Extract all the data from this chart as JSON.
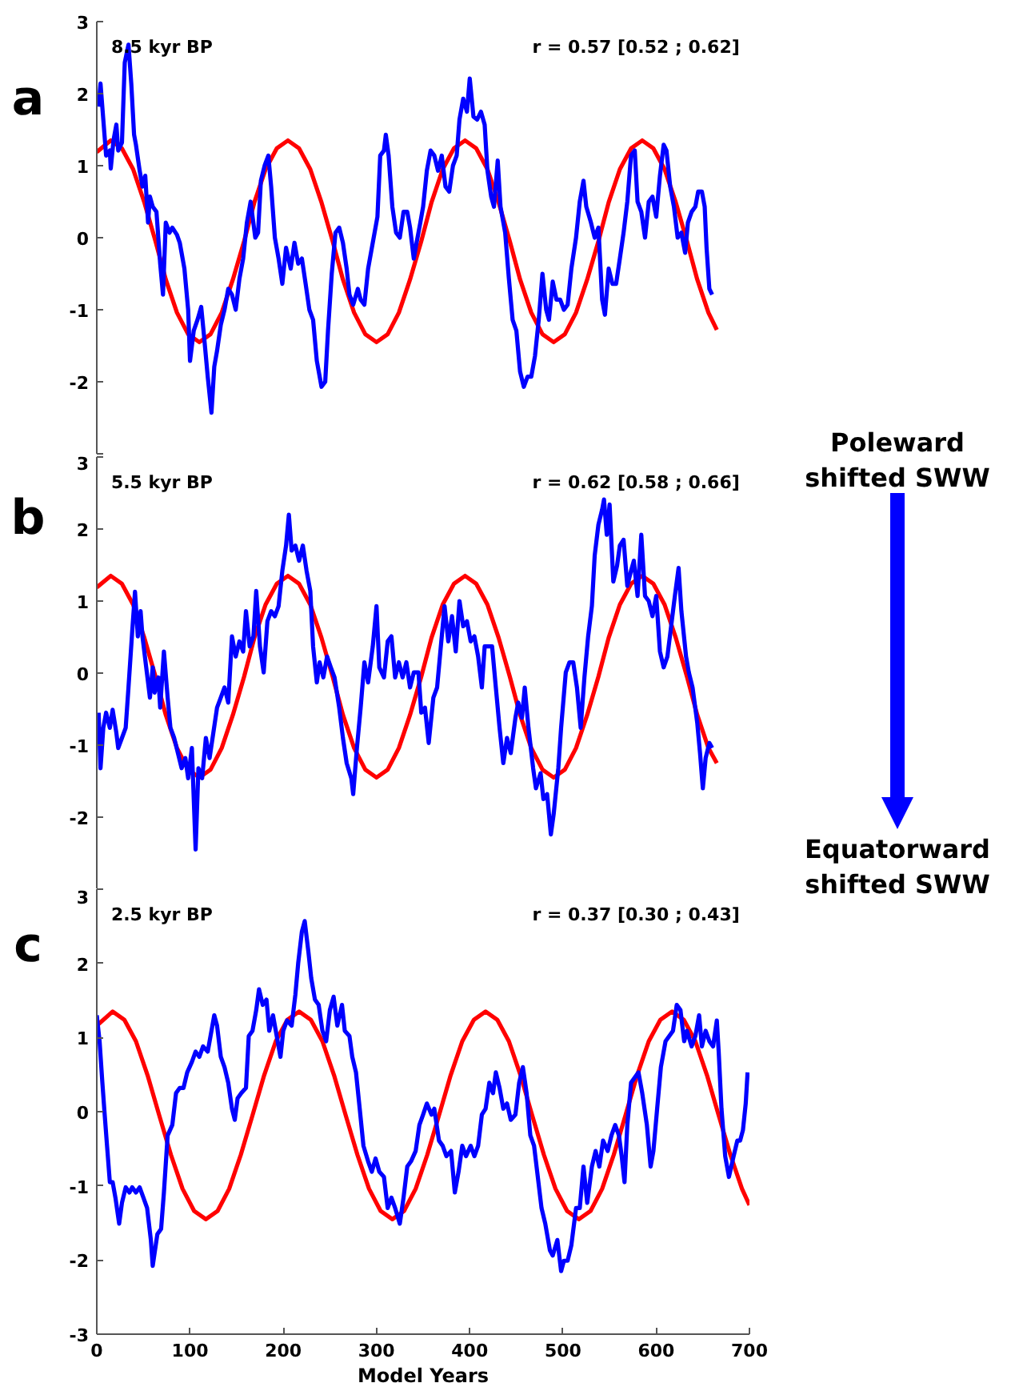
{
  "chart_data": [
    {
      "type": "line",
      "title": "a",
      "annotations": [
        "8.5 kyr BP",
        "r = 0.57 [0.52 ; 0.62]"
      ],
      "xlim": [
        0,
        700
      ],
      "ylim": [
        -3,
        3
      ],
      "yticks": [
        {
          "value": -3,
          "label": null
        },
        -2,
        -1,
        0,
        1,
        2,
        3
      ],
      "tick_labels": "y",
      "series": [
        {
          "color": "#ff0000",
          "x": [
            0,
            15,
            27,
            39,
            51,
            63,
            74,
            86,
            98,
            110,
            122,
            134,
            146,
            158,
            169,
            181,
            193,
            205,
            217,
            229,
            241,
            253,
            264,
            276,
            288,
            300,
            312,
            324,
            336,
            348,
            359,
            371,
            383,
            395,
            407,
            419,
            431,
            443,
            454,
            466,
            478,
            490,
            502,
            514,
            526,
            538,
            549,
            561,
            573,
            585,
            597,
            609,
            621,
            633,
            644,
            656,
            665
          ],
          "values": [
            1.19,
            1.35,
            1.24,
            0.95,
            0.49,
            -0.05,
            -0.58,
            -1.04,
            -1.34,
            -1.45,
            -1.34,
            -1.04,
            -0.58,
            -0.05,
            0.49,
            0.95,
            1.24,
            1.35,
            1.24,
            0.95,
            0.49,
            -0.05,
            -0.58,
            -1.04,
            -1.34,
            -1.45,
            -1.34,
            -1.04,
            -0.58,
            -0.05,
            0.49,
            0.95,
            1.24,
            1.35,
            1.24,
            0.95,
            0.49,
            -0.05,
            -0.58,
            -1.04,
            -1.34,
            -1.45,
            -1.34,
            -1.04,
            -0.58,
            -0.05,
            0.49,
            0.95,
            1.24,
            1.35,
            1.24,
            0.95,
            0.49,
            -0.05,
            -0.58,
            -1.04,
            -1.28
          ]
        },
        {
          "color": "#0000ff",
          "x": [
            2,
            4,
            7,
            10,
            14,
            15,
            18,
            21,
            23,
            27,
            30,
            34,
            37,
            40,
            42,
            46,
            49,
            52,
            55,
            57,
            60,
            64,
            68,
            71,
            74,
            78,
            81,
            86,
            89,
            94,
            98,
            100,
            104,
            108,
            112,
            115,
            119,
            123,
            126,
            129,
            133,
            137,
            141,
            145,
            149,
            153,
            157,
            161,
            165,
            170,
            173,
            176,
            180,
            184,
            187,
            191,
            195,
            199,
            203,
            208,
            212,
            216,
            220,
            224,
            228,
            232,
            236,
            241,
            245,
            248,
            252,
            256,
            260,
            264,
            268,
            271,
            275,
            280,
            283,
            287,
            291,
            296,
            301,
            304,
            308,
            310,
            313,
            317,
            321,
            325,
            329,
            333,
            336,
            340,
            343,
            347,
            350,
            354,
            358,
            362,
            366,
            370,
            374,
            378,
            382,
            386,
            389,
            393,
            397,
            400,
            404,
            408,
            412,
            416,
            419,
            423,
            426,
            430,
            433,
            438,
            442,
            446,
            450,
            454,
            458,
            462,
            466,
            470,
            474,
            478,
            482,
            485,
            489,
            493,
            497,
            501,
            505,
            509,
            514,
            518,
            522,
            525,
            530,
            534,
            538,
            542,
            545,
            549,
            553,
            557,
            561,
            565,
            569,
            573,
            577,
            580,
            584,
            588,
            592,
            596,
            600,
            604,
            608,
            611,
            615,
            619,
            623,
            627,
            631,
            634,
            638,
            642,
            645,
            649,
            652,
            654,
            657,
            660
          ],
          "values": [
            1.82,
            2.14,
            1.64,
            1.14,
            1.21,
            0.96,
            1.36,
            1.57,
            1.21,
            1.32,
            2.43,
            2.68,
            2.14,
            1.43,
            1.29,
            0.93,
            0.71,
            0.86,
            0.21,
            0.57,
            0.43,
            0.36,
            -0.36,
            -0.79,
            0.21,
            0.07,
            0.14,
            0.04,
            -0.07,
            -0.43,
            -1.0,
            -1.71,
            -1.29,
            -1.14,
            -0.96,
            -1.36,
            -1.93,
            -2.43,
            -1.79,
            -1.57,
            -1.21,
            -1.0,
            -0.71,
            -0.79,
            -1.0,
            -0.57,
            -0.29,
            0.21,
            0.5,
            0.0,
            0.07,
            0.79,
            1.0,
            1.14,
            0.71,
            0.0,
            -0.29,
            -0.64,
            -0.14,
            -0.43,
            -0.07,
            -0.36,
            -0.29,
            -0.64,
            -1.0,
            -1.14,
            -1.71,
            -2.07,
            -2.0,
            -1.29,
            -0.5,
            0.07,
            0.14,
            -0.07,
            -0.43,
            -0.79,
            -0.93,
            -0.71,
            -0.86,
            -0.93,
            -0.43,
            -0.07,
            0.29,
            1.14,
            1.21,
            1.43,
            1.14,
            0.43,
            0.07,
            0.0,
            0.36,
            0.36,
            0.14,
            -0.29,
            -0.07,
            0.21,
            0.43,
            0.93,
            1.21,
            1.14,
            0.93,
            1.14,
            0.71,
            0.64,
            1.0,
            1.14,
            1.64,
            1.93,
            1.75,
            2.21,
            1.68,
            1.64,
            1.75,
            1.57,
            0.93,
            0.57,
            0.43,
            1.07,
            0.43,
            0.07,
            -0.57,
            -1.14,
            -1.29,
            -1.86,
            -2.07,
            -1.93,
            -1.93,
            -1.64,
            -1.14,
            -0.5,
            -1.0,
            -1.14,
            -0.61,
            -0.86,
            -0.86,
            -1.0,
            -0.93,
            -0.43,
            0.0,
            0.5,
            0.79,
            0.43,
            0.21,
            0.0,
            0.14,
            -0.86,
            -1.07,
            -0.43,
            -0.64,
            -0.64,
            -0.29,
            0.07,
            0.5,
            1.14,
            1.21,
            0.5,
            0.36,
            0.0,
            0.5,
            0.57,
            0.29,
            0.86,
            1.29,
            1.21,
            0.71,
            0.43,
            0.0,
            0.07,
            -0.21,
            0.21,
            0.36,
            0.43,
            0.64,
            0.64,
            0.43,
            -0.14,
            -0.71,
            -0.79
          ]
        }
      ]
    },
    {
      "type": "line",
      "title": "b",
      "annotations": [
        "5.5 kyr BP",
        "r = 0.62 [0.58 ; 0.66]"
      ],
      "xlim": [
        0,
        700
      ],
      "ylim": [
        -3,
        3
      ],
      "yticks": [
        {
          "value": -3,
          "label": null
        },
        -2,
        -1,
        0,
        1,
        2,
        3
      ],
      "tick_labels": "y",
      "series": [
        {
          "color": "#ff0000",
          "x": [
            0,
            15,
            27,
            39,
            51,
            63,
            74,
            86,
            98,
            110,
            122,
            134,
            146,
            158,
            169,
            181,
            193,
            205,
            217,
            229,
            241,
            253,
            264,
            276,
            288,
            300,
            312,
            324,
            336,
            348,
            359,
            371,
            383,
            395,
            407,
            419,
            431,
            443,
            454,
            466,
            478,
            490,
            502,
            514,
            526,
            538,
            549,
            561,
            573,
            585,
            597,
            609,
            621,
            633,
            644,
            656,
            665
          ],
          "values": [
            1.19,
            1.35,
            1.24,
            0.95,
            0.49,
            -0.05,
            -0.58,
            -1.04,
            -1.34,
            -1.45,
            -1.34,
            -1.04,
            -0.58,
            -0.05,
            0.49,
            0.95,
            1.24,
            1.35,
            1.24,
            0.95,
            0.49,
            -0.05,
            -0.58,
            -1.04,
            -1.34,
            -1.45,
            -1.34,
            -1.04,
            -0.58,
            -0.05,
            0.49,
            0.95,
            1.24,
            1.35,
            1.24,
            0.95,
            0.49,
            -0.05,
            -0.58,
            -1.04,
            -1.34,
            -1.45,
            -1.34,
            -1.04,
            -0.58,
            -0.05,
            0.49,
            0.95,
            1.24,
            1.35,
            1.24,
            0.95,
            0.49,
            -0.05,
            -0.58,
            -1.04,
            -1.25
          ]
        },
        {
          "color": "#0000ff",
          "x": [
            2,
            4,
            7,
            10,
            14,
            17,
            21,
            23,
            27,
            31,
            34,
            38,
            41,
            44,
            47,
            49,
            53,
            57,
            60,
            62,
            66,
            68,
            72,
            76,
            79,
            83,
            87,
            91,
            95,
            98,
            102,
            106,
            109,
            113,
            117,
            121,
            125,
            129,
            133,
            137,
            141,
            145,
            149,
            153,
            157,
            160,
            164,
            168,
            171,
            175,
            179,
            183,
            187,
            191,
            195,
            199,
            203,
            206,
            209,
            213,
            217,
            221,
            225,
            229,
            232,
            236,
            239,
            243,
            247,
            251,
            255,
            260,
            264,
            268,
            273,
            275,
            279,
            283,
            287,
            291,
            296,
            300,
            303,
            308,
            312,
            316,
            320,
            324,
            328,
            332,
            336,
            340,
            345,
            348,
            352,
            356,
            361,
            365,
            369,
            373,
            377,
            381,
            385,
            389,
            393,
            397,
            401,
            405,
            409,
            413,
            416,
            420,
            424,
            428,
            432,
            436,
            440,
            444,
            449,
            452,
            456,
            459,
            463,
            468,
            471,
            476,
            479,
            483,
            487,
            490,
            495,
            498,
            503,
            507,
            511,
            515,
            519,
            523,
            527,
            531,
            534,
            538,
            542,
            544,
            547,
            550,
            554,
            558,
            561,
            565,
            569,
            573,
            576,
            580,
            584,
            588,
            592,
            596,
            600,
            604,
            608,
            612,
            616,
            620,
            624,
            627,
            632,
            635,
            639,
            644,
            647,
            650,
            653,
            657,
            660
          ],
          "values": [
            -0.55,
            -1.32,
            -0.76,
            -0.55,
            -0.76,
            -0.51,
            -0.83,
            -1.04,
            -0.9,
            -0.76,
            -0.2,
            0.58,
            1.13,
            0.51,
            0.86,
            0.51,
            0.08,
            -0.34,
            0.08,
            -0.27,
            -0.06,
            -0.48,
            0.3,
            -0.34,
            -0.76,
            -0.9,
            -1.11,
            -1.32,
            -1.18,
            -1.46,
            -1.04,
            -2.45,
            -1.32,
            -1.46,
            -0.9,
            -1.18,
            -0.83,
            -0.48,
            -0.34,
            -0.2,
            -0.41,
            0.51,
            0.23,
            0.44,
            0.3,
            0.86,
            0.37,
            0.51,
            1.14,
            0.37,
            0.01,
            0.72,
            0.86,
            0.79,
            0.93,
            1.42,
            1.77,
            2.2,
            1.7,
            1.77,
            1.56,
            1.77,
            1.42,
            1.14,
            0.37,
            -0.13,
            0.15,
            -0.06,
            0.23,
            0.08,
            -0.06,
            -0.48,
            -0.9,
            -1.25,
            -1.46,
            -1.68,
            -1.04,
            -0.48,
            0.15,
            -0.13,
            0.37,
            0.93,
            0.08,
            -0.06,
            0.44,
            0.51,
            -0.06,
            0.15,
            -0.06,
            0.15,
            -0.2,
            0.01,
            0.01,
            -0.55,
            -0.48,
            -0.97,
            -0.34,
            -0.2,
            0.37,
            0.93,
            0.44,
            0.79,
            0.3,
            1.0,
            0.65,
            0.72,
            0.44,
            0.51,
            0.23,
            -0.2,
            0.37,
            0.37,
            0.37,
            -0.2,
            -0.76,
            -1.25,
            -0.9,
            -1.11,
            -0.62,
            -0.41,
            -0.62,
            -0.2,
            -0.76,
            -1.32,
            -1.6,
            -1.39,
            -1.75,
            -1.68,
            -2.24,
            -1.96,
            -1.32,
            -0.76,
            0.01,
            0.15,
            0.15,
            -0.2,
            -0.76,
            -0.06,
            0.51,
            0.93,
            1.63,
            2.06,
            2.27,
            2.41,
            1.92,
            2.34,
            1.27,
            1.49,
            1.77,
            1.85,
            1.21,
            1.42,
            1.56,
            1.07,
            1.92,
            1.07,
            1.0,
            0.79,
            1.07,
            0.3,
            0.08,
            0.23,
            0.65,
            1.07,
            1.46,
            0.86,
            0.23,
            0.01,
            -0.2,
            -0.69,
            -1.11,
            -1.6,
            -1.18,
            -0.97,
            -1.04
          ]
        }
      ]
    },
    {
      "type": "line",
      "title": "c",
      "annotations": [
        "2.5 kyr BP",
        "r = 0.37 [0.30 ; 0.43]"
      ],
      "xlabel": "Model Years",
      "xlim": [
        0,
        700
      ],
      "ylim": [
        -3,
        3
      ],
      "xticks": [
        0,
        100,
        200,
        300,
        400,
        500,
        600,
        700
      ],
      "yticks": [
        -3,
        -2,
        -1,
        0,
        1,
        2,
        3
      ],
      "series": [
        {
          "color": "#ff0000",
          "x": [
            0,
            17,
            29.5,
            42,
            54.5,
            67,
            79.5,
            92,
            104.5,
            117,
            129.5,
            142,
            154.5,
            167,
            179.5,
            192,
            204.5,
            217,
            229.5,
            242,
            254.5,
            267,
            279.5,
            292,
            304.5,
            317,
            329.5,
            342,
            354.5,
            367,
            379.5,
            392,
            404.5,
            417,
            429.5,
            442,
            454.5,
            467,
            479.5,
            492,
            504.5,
            517,
            529.5,
            542,
            554.5,
            567,
            579.5,
            592,
            604.5,
            617,
            629.5,
            642,
            654.5,
            667,
            679.5,
            692,
            700
          ],
          "values": [
            1.16,
            1.35,
            1.24,
            0.95,
            0.49,
            -0.05,
            -0.58,
            -1.04,
            -1.34,
            -1.45,
            -1.34,
            -1.04,
            -0.58,
            -0.05,
            0.49,
            0.95,
            1.24,
            1.35,
            1.24,
            0.95,
            0.49,
            -0.05,
            -0.58,
            -1.04,
            -1.34,
            -1.45,
            -1.34,
            -1.04,
            -0.58,
            -0.05,
            0.49,
            0.95,
            1.24,
            1.35,
            1.24,
            0.95,
            0.49,
            -0.05,
            -0.58,
            -1.04,
            -1.34,
            -1.45,
            -1.34,
            -1.04,
            -0.58,
            -0.05,
            0.49,
            0.95,
            1.24,
            1.35,
            1.24,
            0.95,
            0.49,
            -0.05,
            -0.58,
            -1.04,
            -1.26
          ]
        },
        {
          "color": "#0000ff",
          "x": [
            0,
            3,
            6,
            8,
            11,
            14,
            17,
            20,
            24,
            27,
            31,
            35,
            38,
            42,
            46,
            50,
            54,
            58,
            60,
            65,
            69,
            72,
            76,
            81,
            85,
            89,
            93,
            97,
            102,
            106,
            110,
            114,
            119,
            123,
            126,
            129,
            133,
            137,
            141,
            145,
            148,
            151,
            155,
            160,
            163,
            167,
            171,
            174,
            178,
            182,
            185,
            189,
            193,
            197,
            200,
            204,
            209,
            213,
            216,
            220,
            223,
            227,
            230,
            234,
            238,
            242,
            246,
            250,
            254,
            258,
            263,
            266,
            271,
            274,
            278,
            282,
            286,
            291,
            295,
            299,
            303,
            308,
            312,
            316,
            320,
            325,
            329,
            333,
            337,
            342,
            346,
            350,
            354,
            359,
            362,
            367,
            371,
            375,
            380,
            384,
            388,
            392,
            396,
            401,
            405,
            409,
            413,
            417,
            421,
            425,
            428,
            432,
            436,
            440,
            444,
            449,
            453,
            457,
            461,
            465,
            469,
            473,
            477,
            481,
            486,
            489,
            494,
            498,
            501,
            505,
            509,
            514,
            518,
            522,
            526,
            531,
            535,
            539,
            543,
            548,
            552,
            556,
            560,
            563,
            566,
            569,
            573,
            577,
            581,
            585,
            590,
            594,
            597,
            601,
            605,
            610,
            614,
            618,
            622,
            626,
            630,
            633,
            638,
            642,
            646,
            649,
            653,
            657,
            661,
            665,
            667,
            670,
            674,
            678,
            683,
            687,
            690,
            693,
            696,
            698
          ],
          "values": [
            1.3,
            0.95,
            0.39,
            0.04,
            -0.46,
            -0.95,
            -0.95,
            -1.16,
            -1.51,
            -1.23,
            -1.02,
            -1.09,
            -1.02,
            -1.09,
            -1.02,
            -1.16,
            -1.3,
            -1.73,
            -2.08,
            -1.65,
            -1.58,
            -1.09,
            -0.32,
            -0.18,
            0.25,
            0.32,
            0.32,
            0.53,
            0.67,
            0.81,
            0.74,
            0.88,
            0.81,
            1.09,
            1.3,
            1.16,
            0.74,
            0.6,
            0.39,
            0.04,
            -0.11,
            0.18,
            0.25,
            0.32,
            1.02,
            1.09,
            1.37,
            1.65,
            1.44,
            1.51,
            1.09,
            1.3,
            1.02,
            0.74,
            1.09,
            1.23,
            1.16,
            1.58,
            2.0,
            2.43,
            2.57,
            2.15,
            1.8,
            1.51,
            1.44,
            1.09,
            0.95,
            1.37,
            1.55,
            1.16,
            1.44,
            1.09,
            1.02,
            0.74,
            0.53,
            0.04,
            -0.46,
            -0.67,
            -0.81,
            -0.63,
            -0.81,
            -0.88,
            -1.3,
            -1.16,
            -1.3,
            -1.51,
            -1.16,
            -0.74,
            -0.67,
            -0.53,
            -0.18,
            -0.04,
            0.11,
            -0.04,
            0.04,
            -0.39,
            -0.46,
            -0.6,
            -0.53,
            -1.09,
            -0.81,
            -0.46,
            -0.6,
            -0.46,
            -0.6,
            -0.46,
            -0.04,
            0.04,
            0.39,
            0.25,
            0.53,
            0.32,
            0.04,
            0.11,
            -0.11,
            -0.04,
            0.39,
            0.6,
            0.25,
            -0.32,
            -0.46,
            -0.88,
            -1.3,
            -1.51,
            -1.87,
            -1.94,
            -1.73,
            -2.15,
            -2.01,
            -2.01,
            -1.8,
            -1.3,
            -1.3,
            -0.74,
            -1.23,
            -0.74,
            -0.53,
            -0.74,
            -0.39,
            -0.53,
            -0.32,
            -0.18,
            -0.32,
            -0.6,
            -0.95,
            -0.18,
            0.39,
            0.46,
            0.53,
            0.25,
            -0.18,
            -0.74,
            -0.53,
            0.04,
            0.6,
            0.95,
            1.02,
            1.09,
            1.44,
            1.37,
            0.95,
            1.09,
            0.88,
            1.02,
            1.3,
            0.88,
            1.09,
            0.95,
            0.88,
            1.23,
            0.81,
            0.04,
            -0.6,
            -0.88,
            -0.6,
            -0.39,
            -0.39,
            -0.25,
            0.11,
            0.53
          ]
        }
      ]
    },
    {
      "type": "other",
      "annotations": [
        "Poleward shifted SWW",
        "Equatorward shifted SWW"
      ]
    }
  ]
}
